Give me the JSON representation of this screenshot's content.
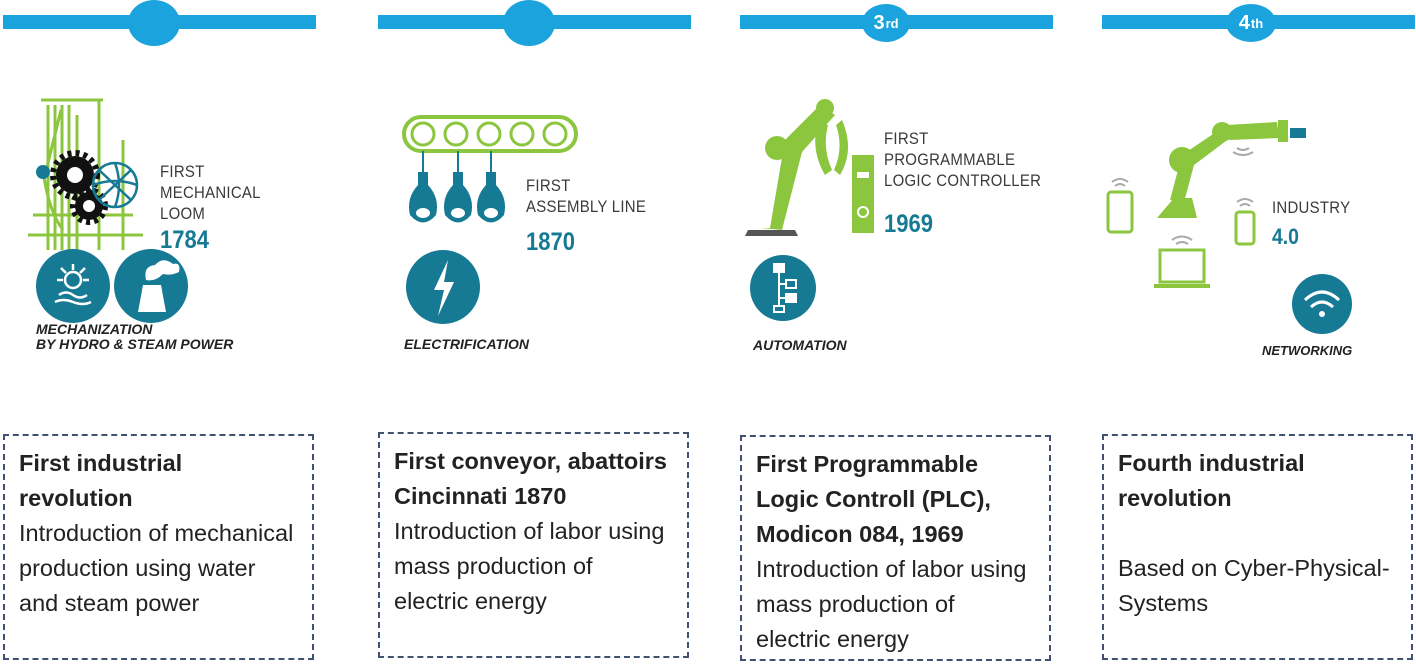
{
  "stages": [
    {
      "badge": "",
      "badge_sup": "",
      "illus_label": "FIRST\nMECHANICAL\nLOOM",
      "illus_year": "1784",
      "caption": "MECHANIZATION\nBY HYDRO & STEAM POWER",
      "title": "First industrial revolution",
      "description": "Introduction of mechanical production using water and steam power"
    },
    {
      "badge": "",
      "badge_sup": "",
      "illus_label": "FIRST\nASSEMBLY LINE",
      "illus_year": "1870",
      "caption": "ELECTRIFICATION",
      "title": "First conveyor, abattoirs Cincinnati 1870",
      "description": "Introduction of labor using mass production of electric energy"
    },
    {
      "badge": "3",
      "badge_sup": "rd",
      "illus_label": "FIRST\nPROGRAMMABLE\nLOGIC CONTROLLER",
      "illus_year": "1969",
      "caption": "AUTOMATION",
      "title": "First Programmable Logic Controll (PLC), Modicon 084, 1969",
      "description": "Introduction of labor using mass production of electric energy"
    },
    {
      "badge": "4",
      "badge_sup": "th",
      "illus_label": "INDUSTRY",
      "illus_year": "4.0",
      "caption": "NETWORKING",
      "title": "Fourth industrial revolution",
      "description": "Based on Cyber-Physical-Systems"
    }
  ],
  "colors": {
    "accent_blue": "#1aa3dc",
    "illus_green": "#8cc63f",
    "illus_teal": "#167a94",
    "border": "#3f5272"
  }
}
